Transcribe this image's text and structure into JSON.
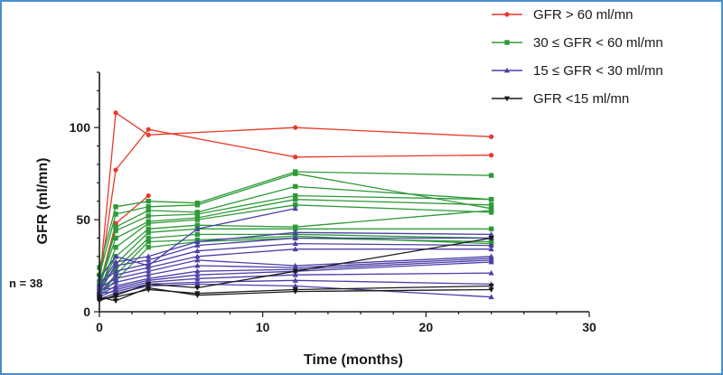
{
  "chart_data": {
    "type": "line",
    "title": "",
    "xlabel": "Time (months)",
    "ylabel": "GFR (ml/mn)",
    "xlim": [
      0,
      30
    ],
    "ylim": [
      0,
      130
    ],
    "xticks": [
      0,
      10,
      20,
      30
    ],
    "yticks": [
      0,
      50,
      100
    ],
    "annotation": "n = 38",
    "legend_position": "top-right",
    "groups": [
      {
        "name": "GFR > 60 ml/mn",
        "color": "#e8392a",
        "marker": "circle",
        "lines": [
          [
            [
              0,
              15
            ],
            [
              1,
              108
            ],
            [
              3,
              96
            ],
            [
              12,
              100
            ],
            [
              24,
              95
            ]
          ],
          [
            [
              0,
              16
            ],
            [
              1,
              77
            ],
            [
              3,
              99
            ],
            [
              12,
              84
            ],
            [
              24,
              85
            ]
          ],
          [
            [
              0,
              14
            ],
            [
              1,
              48
            ],
            [
              3,
              63
            ]
          ]
        ]
      },
      {
        "name": "30  ≤ GFR < 60 ml/mn",
        "color": "#2e9a38",
        "marker": "square",
        "lines": [
          [
            [
              0,
              24
            ],
            [
              1,
              57
            ],
            [
              3,
              60
            ],
            [
              6,
              59
            ],
            [
              12,
              76
            ],
            [
              24,
              74
            ]
          ],
          [
            [
              0,
              20
            ],
            [
              1,
              53
            ],
            [
              3,
              57
            ],
            [
              6,
              58
            ],
            [
              12,
              75
            ],
            [
              24,
              56
            ]
          ],
          [
            [
              0,
              12
            ],
            [
              1,
              46
            ],
            [
              3,
              55
            ],
            [
              6,
              54
            ],
            [
              12,
              68
            ],
            [
              24,
              61
            ]
          ],
          [
            [
              0,
              15
            ],
            [
              1,
              44
            ],
            [
              3,
              52
            ],
            [
              6,
              53
            ],
            [
              12,
              63
            ],
            [
              24,
              61
            ]
          ],
          [
            [
              0,
              14
            ],
            [
              1,
              40
            ],
            [
              3,
              49
            ],
            [
              6,
              51
            ],
            [
              12,
              61
            ],
            [
              24,
              58
            ]
          ],
          [
            [
              0,
              11
            ],
            [
              1,
              35
            ],
            [
              3,
              48
            ],
            [
              6,
              50
            ],
            [
              12,
              58
            ],
            [
              24,
              54
            ]
          ],
          [
            [
              0,
              13
            ],
            [
              1,
              30
            ],
            [
              3,
              45
            ],
            [
              6,
              47
            ],
            [
              12,
              46
            ],
            [
              24,
              55
            ]
          ],
          [
            [
              0,
              10
            ],
            [
              1,
              26
            ],
            [
              3,
              43
            ],
            [
              6,
              45
            ],
            [
              12,
              45
            ],
            [
              24,
              45
            ]
          ],
          [
            [
              0,
              16
            ],
            [
              1,
              23
            ],
            [
              3,
              40
            ],
            [
              6,
              42
            ],
            [
              12,
              42
            ],
            [
              24,
              40
            ]
          ],
          [
            [
              0,
              8
            ],
            [
              1,
              20
            ],
            [
              3,
              38
            ],
            [
              6,
              39
            ],
            [
              12,
              41
            ],
            [
              24,
              37
            ]
          ],
          [
            [
              0,
              9
            ],
            [
              1,
              17
            ],
            [
              3,
              35
            ],
            [
              6,
              38
            ],
            [
              12,
              40
            ],
            [
              24,
              38
            ]
          ]
        ]
      },
      {
        "name": "15 ≤ GFR < 30 ml/mn",
        "color": "#4b3fa8",
        "marker": "triangle",
        "lines": [
          [
            [
              0,
              18
            ],
            [
              1,
              30
            ],
            [
              3,
              25
            ],
            [
              6,
              45
            ],
            [
              12,
              56
            ]
          ],
          [
            [
              0,
              14
            ],
            [
              1,
              27
            ],
            [
              3,
              30
            ],
            [
              6,
              38
            ],
            [
              12,
              43
            ],
            [
              24,
              42
            ]
          ],
          [
            [
              0,
              12
            ],
            [
              1,
              25
            ],
            [
              3,
              28
            ],
            [
              6,
              36
            ],
            [
              12,
              40
            ],
            [
              24,
              40
            ]
          ],
          [
            [
              0,
              15
            ],
            [
              1,
              22
            ],
            [
              3,
              26
            ],
            [
              6,
              33
            ],
            [
              12,
              37
            ],
            [
              24,
              36
            ]
          ],
          [
            [
              0,
              10
            ],
            [
              1,
              20
            ],
            [
              3,
              24
            ],
            [
              6,
              30
            ],
            [
              12,
              34
            ],
            [
              24,
              34
            ]
          ],
          [
            [
              0,
              13
            ],
            [
              1,
              18
            ],
            [
              3,
              22
            ],
            [
              6,
              28
            ],
            [
              12,
              25
            ],
            [
              24,
              30
            ]
          ],
          [
            [
              0,
              11
            ],
            [
              1,
              16
            ],
            [
              3,
              20
            ],
            [
              6,
              25
            ],
            [
              12,
              24
            ],
            [
              24,
              29
            ]
          ],
          [
            [
              0,
              9
            ],
            [
              1,
              14
            ],
            [
              3,
              18
            ],
            [
              6,
              22
            ],
            [
              12,
              23
            ],
            [
              24,
              28
            ]
          ],
          [
            [
              0,
              12
            ],
            [
              1,
              13
            ],
            [
              3,
              17
            ],
            [
              6,
              20
            ],
            [
              12,
              22
            ],
            [
              24,
              27
            ]
          ],
          [
            [
              0,
              8
            ],
            [
              1,
              12
            ],
            [
              3,
              16
            ],
            [
              6,
              18
            ],
            [
              12,
              20
            ],
            [
              24,
              21
            ]
          ],
          [
            [
              0,
              10
            ],
            [
              1,
              11
            ],
            [
              3,
              15
            ],
            [
              6,
              16
            ],
            [
              12,
              17
            ],
            [
              24,
              15
            ]
          ],
          [
            [
              0,
              7
            ],
            [
              1,
              10
            ],
            [
              3,
              14
            ],
            [
              6,
              15
            ],
            [
              12,
              14
            ],
            [
              24,
              8
            ]
          ]
        ]
      },
      {
        "name": "GFR <15 ml/mn",
        "color": "#1a1a1a",
        "marker": "triangle-down",
        "lines": [
          [
            [
              0,
              8
            ],
            [
              1,
              6
            ],
            [
              3,
              13
            ],
            [
              6,
              9
            ],
            [
              12,
              11
            ],
            [
              24,
              12
            ]
          ],
          [
            [
              0,
              7
            ],
            [
              1,
              8
            ],
            [
              3,
              12
            ],
            [
              6,
              10
            ],
            [
              12,
              12
            ],
            [
              24,
              14
            ]
          ],
          [
            [
              0,
              6
            ],
            [
              1,
              9
            ],
            [
              3,
              15
            ],
            [
              6,
              13
            ],
            [
              12,
              22
            ],
            [
              24,
              40
            ]
          ]
        ]
      }
    ]
  }
}
